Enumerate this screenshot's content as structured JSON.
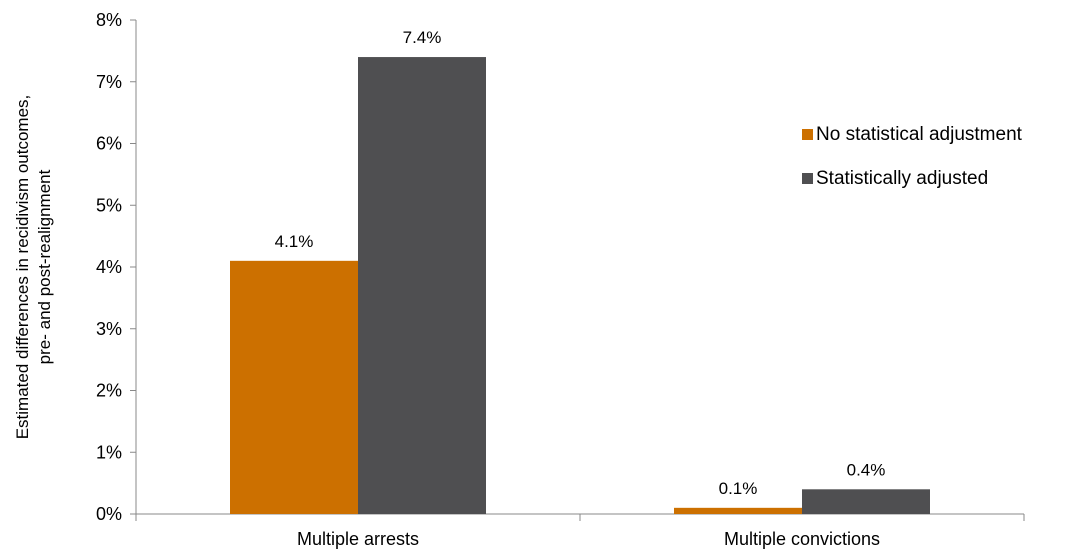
{
  "chart_data": {
    "type": "bar",
    "categories": [
      "Multiple arrests",
      "Multiple convictions"
    ],
    "series": [
      {
        "name": "No statistical adjustment",
        "values": [
          4.1,
          0.1
        ],
        "labels": [
          "4.1%",
          "0.1%"
        ],
        "color": "#CC7000"
      },
      {
        "name": "Statistically adjusted",
        "values": [
          7.4,
          0.4
        ],
        "labels": [
          "7.4%",
          "0.4%"
        ],
        "color": "#4F4F51"
      }
    ],
    "title": "",
    "xlabel": "",
    "ylabel_lines": [
      "Estimated differences in recidivism outcomes,",
      "pre- and post-realignment"
    ],
    "ylim": [
      0,
      8
    ],
    "yticks": [
      "0%",
      "1%",
      "2%",
      "3%",
      "4%",
      "5%",
      "6%",
      "7%",
      "8%"
    ],
    "grid": false,
    "legend_position": "right"
  }
}
